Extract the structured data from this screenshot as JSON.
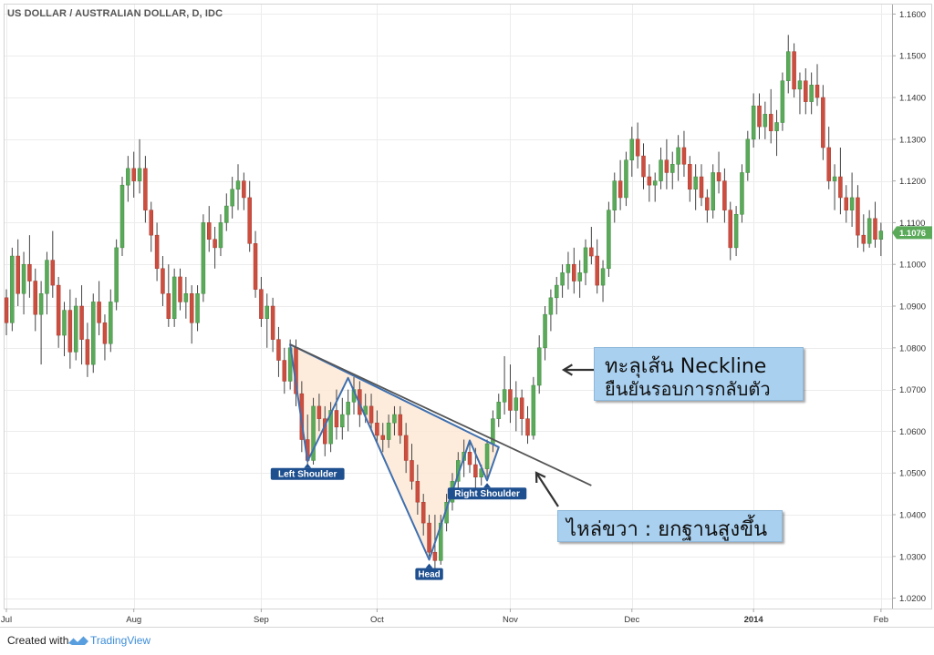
{
  "chart_data": {
    "type": "candlestick",
    "title": "US DOLLAR / AUSTRALIAN DOLLAR, D, IDC",
    "y_axis": {
      "position": "right",
      "range": [
        1.0175,
        1.1625
      ],
      "ticks": [
        "1.1600",
        "1.1500",
        "1.1400",
        "1.1300",
        "1.1200",
        "1.1100",
        "1.1000",
        "1.0900",
        "1.0800",
        "1.0700",
        "1.0600",
        "1.0500",
        "1.0400",
        "1.0300",
        "1.0200"
      ]
    },
    "x_axis": {
      "ticks": [
        {
          "label": "Jul",
          "bold": false,
          "candle": 0
        },
        {
          "label": "Aug",
          "bold": false,
          "candle": 22
        },
        {
          "label": "Sep",
          "bold": false,
          "candle": 44
        },
        {
          "label": "Oct",
          "bold": false,
          "candle": 64
        },
        {
          "label": "Nov",
          "bold": false,
          "candle": 87
        },
        {
          "label": "Dec",
          "bold": false,
          "candle": 108
        },
        {
          "label": "2014",
          "bold": true,
          "candle": 129
        },
        {
          "label": "Feb",
          "bold": false,
          "candle": 151
        }
      ]
    },
    "last_price": {
      "label": "1.1076",
      "value": 1.1076,
      "color": "#5aaa5a"
    },
    "colors": {
      "up": "#5aaa5a",
      "down": "#cd4e3f",
      "wick": "#444444"
    },
    "candles": [
      [
        1.092,
        1.094,
        1.083,
        1.086
      ],
      [
        1.086,
        1.104,
        1.084,
        1.102
      ],
      [
        1.102,
        1.106,
        1.09,
        1.093
      ],
      [
        1.093,
        1.103,
        1.088,
        1.1
      ],
      [
        1.1,
        1.107,
        1.092,
        1.096
      ],
      [
        1.096,
        1.099,
        1.084,
        1.088
      ],
      [
        1.088,
        1.096,
        1.076,
        1.093
      ],
      [
        1.093,
        1.103,
        1.088,
        1.101
      ],
      [
        1.101,
        1.108,
        1.092,
        1.095
      ],
      [
        1.095,
        1.097,
        1.08,
        1.083
      ],
      [
        1.083,
        1.091,
        1.078,
        1.089
      ],
      [
        1.089,
        1.094,
        1.075,
        1.079
      ],
      [
        1.079,
        1.092,
        1.077,
        1.09
      ],
      [
        1.09,
        1.095,
        1.076,
        1.082
      ],
      [
        1.082,
        1.086,
        1.073,
        1.076
      ],
      [
        1.076,
        1.093,
        1.074,
        1.091
      ],
      [
        1.091,
        1.096,
        1.083,
        1.086
      ],
      [
        1.086,
        1.088,
        1.077,
        1.081
      ],
      [
        1.081,
        1.094,
        1.079,
        1.091
      ],
      [
        1.091,
        1.106,
        1.089,
        1.104
      ],
      [
        1.104,
        1.121,
        1.102,
        1.119
      ],
      [
        1.119,
        1.126,
        1.115,
        1.123
      ],
      [
        1.123,
        1.127,
        1.116,
        1.12
      ],
      [
        1.12,
        1.13,
        1.117,
        1.123
      ],
      [
        1.123,
        1.126,
        1.11,
        1.113
      ],
      [
        1.113,
        1.115,
        1.103,
        1.107
      ],
      [
        1.107,
        1.11,
        1.096,
        1.099
      ],
      [
        1.099,
        1.102,
        1.09,
        1.093
      ],
      [
        1.093,
        1.1,
        1.085,
        1.087
      ],
      [
        1.087,
        1.099,
        1.085,
        1.097
      ],
      [
        1.097,
        1.099,
        1.089,
        1.091
      ],
      [
        1.091,
        1.097,
        1.087,
        1.093
      ],
      [
        1.093,
        1.095,
        1.081,
        1.086
      ],
      [
        1.086,
        1.095,
        1.084,
        1.093
      ],
      [
        1.093,
        1.112,
        1.091,
        1.11
      ],
      [
        1.11,
        1.114,
        1.103,
        1.106
      ],
      [
        1.106,
        1.109,
        1.099,
        1.104
      ],
      [
        1.104,
        1.112,
        1.102,
        1.11
      ],
      [
        1.11,
        1.117,
        1.108,
        1.114
      ],
      [
        1.114,
        1.121,
        1.111,
        1.118
      ],
      [
        1.118,
        1.124,
        1.113,
        1.12
      ],
      [
        1.12,
        1.122,
        1.113,
        1.116
      ],
      [
        1.116,
        1.12,
        1.103,
        1.105
      ],
      [
        1.105,
        1.108,
        1.092,
        1.094
      ],
      [
        1.094,
        1.097,
        1.085,
        1.087
      ],
      [
        1.087,
        1.093,
        1.08,
        1.09
      ],
      [
        1.09,
        1.092,
        1.079,
        1.082
      ],
      [
        1.082,
        1.085,
        1.073,
        1.077
      ],
      [
        1.077,
        1.08,
        1.069,
        1.072
      ],
      [
        1.072,
        1.082,
        1.07,
        1.08
      ],
      [
        1.08,
        1.082,
        1.066,
        1.069
      ],
      [
        1.069,
        1.072,
        1.055,
        1.058
      ],
      [
        1.058,
        1.064,
        1.052,
        1.053
      ],
      [
        1.053,
        1.068,
        1.052,
        1.066
      ],
      [
        1.066,
        1.069,
        1.06,
        1.063
      ],
      [
        1.063,
        1.066,
        1.054,
        1.057
      ],
      [
        1.057,
        1.067,
        1.055,
        1.065
      ],
      [
        1.065,
        1.07,
        1.058,
        1.061
      ],
      [
        1.061,
        1.068,
        1.058,
        1.064
      ],
      [
        1.064,
        1.07,
        1.06,
        1.067
      ],
      [
        1.067,
        1.073,
        1.064,
        1.07
      ],
      [
        1.07,
        1.072,
        1.061,
        1.064
      ],
      [
        1.064,
        1.069,
        1.062,
        1.066
      ],
      [
        1.066,
        1.069,
        1.06,
        1.062
      ],
      [
        1.062,
        1.065,
        1.057,
        1.059
      ],
      [
        1.059,
        1.062,
        1.055,
        1.058
      ],
      [
        1.058,
        1.064,
        1.056,
        1.062
      ],
      [
        1.062,
        1.066,
        1.059,
        1.064
      ],
      [
        1.064,
        1.066,
        1.057,
        1.059
      ],
      [
        1.059,
        1.062,
        1.05,
        1.053
      ],
      [
        1.053,
        1.057,
        1.046,
        1.048
      ],
      [
        1.048,
        1.052,
        1.04,
        1.043
      ],
      [
        1.043,
        1.045,
        1.035,
        1.038
      ],
      [
        1.038,
        1.04,
        1.03,
        1.031
      ],
      [
        1.031,
        1.04,
        1.025,
        1.029
      ],
      [
        1.029,
        1.04,
        1.028,
        1.038
      ],
      [
        1.038,
        1.045,
        1.036,
        1.043
      ],
      [
        1.043,
        1.05,
        1.041,
        1.048
      ],
      [
        1.048,
        1.055,
        1.045,
        1.053
      ],
      [
        1.053,
        1.058,
        1.049,
        1.055
      ],
      [
        1.055,
        1.058,
        1.05,
        1.052
      ],
      [
        1.052,
        1.056,
        1.046,
        1.049
      ],
      [
        1.049,
        1.052,
        1.047,
        1.051
      ],
      [
        1.051,
        1.058,
        1.049,
        1.057
      ],
      [
        1.057,
        1.065,
        1.055,
        1.063
      ],
      [
        1.063,
        1.069,
        1.061,
        1.067
      ],
      [
        1.067,
        1.078,
        1.064,
        1.07
      ],
      [
        1.07,
        1.076,
        1.062,
        1.065
      ],
      [
        1.065,
        1.072,
        1.06,
        1.068
      ],
      [
        1.068,
        1.07,
        1.059,
        1.063
      ],
      [
        1.063,
        1.066,
        1.057,
        1.059
      ],
      [
        1.059,
        1.073,
        1.058,
        1.071
      ],
      [
        1.071,
        1.083,
        1.069,
        1.08
      ],
      [
        1.08,
        1.09,
        1.077,
        1.088
      ],
      [
        1.088,
        1.094,
        1.084,
        1.092
      ],
      [
        1.092,
        1.097,
        1.088,
        1.095
      ],
      [
        1.095,
        1.1,
        1.092,
        1.098
      ],
      [
        1.098,
        1.103,
        1.094,
        1.1
      ],
      [
        1.1,
        1.104,
        1.093,
        1.096
      ],
      [
        1.096,
        1.101,
        1.092,
        1.098
      ],
      [
        1.098,
        1.106,
        1.095,
        1.104
      ],
      [
        1.104,
        1.109,
        1.1,
        1.102
      ],
      [
        1.102,
        1.106,
        1.093,
        1.095
      ],
      [
        1.095,
        1.101,
        1.091,
        1.099
      ],
      [
        1.099,
        1.115,
        1.097,
        1.113
      ],
      [
        1.113,
        1.122,
        1.11,
        1.12
      ],
      [
        1.12,
        1.125,
        1.113,
        1.116
      ],
      [
        1.116,
        1.127,
        1.114,
        1.125
      ],
      [
        1.125,
        1.133,
        1.121,
        1.13
      ],
      [
        1.13,
        1.134,
        1.123,
        1.126
      ],
      [
        1.126,
        1.129,
        1.118,
        1.121
      ],
      [
        1.121,
        1.124,
        1.115,
        1.119
      ],
      [
        1.119,
        1.122,
        1.115,
        1.12
      ],
      [
        1.12,
        1.128,
        1.118,
        1.125
      ],
      [
        1.125,
        1.13,
        1.118,
        1.122
      ],
      [
        1.122,
        1.127,
        1.118,
        1.124
      ],
      [
        1.124,
        1.131,
        1.12,
        1.128
      ],
      [
        1.128,
        1.132,
        1.121,
        1.124
      ],
      [
        1.124,
        1.126,
        1.115,
        1.118
      ],
      [
        1.118,
        1.124,
        1.113,
        1.121
      ],
      [
        1.121,
        1.124,
        1.114,
        1.116
      ],
      [
        1.116,
        1.118,
        1.11,
        1.113
      ],
      [
        1.113,
        1.124,
        1.111,
        1.122
      ],
      [
        1.122,
        1.127,
        1.117,
        1.12
      ],
      [
        1.12,
        1.123,
        1.11,
        1.113
      ],
      [
        1.113,
        1.115,
        1.101,
        1.104
      ],
      [
        1.104,
        1.114,
        1.102,
        1.112
      ],
      [
        1.112,
        1.124,
        1.11,
        1.122
      ],
      [
        1.122,
        1.132,
        1.12,
        1.13
      ],
      [
        1.13,
        1.141,
        1.128,
        1.138
      ],
      [
        1.138,
        1.141,
        1.13,
        1.133
      ],
      [
        1.133,
        1.139,
        1.13,
        1.136
      ],
      [
        1.136,
        1.142,
        1.129,
        1.132
      ],
      [
        1.132,
        1.137,
        1.126,
        1.134
      ],
      [
        1.134,
        1.146,
        1.132,
        1.144
      ],
      [
        1.144,
        1.155,
        1.141,
        1.151
      ],
      [
        1.151,
        1.153,
        1.14,
        1.142
      ],
      [
        1.142,
        1.146,
        1.136,
        1.144
      ],
      [
        1.144,
        1.147,
        1.136,
        1.139
      ],
      [
        1.139,
        1.146,
        1.136,
        1.143
      ],
      [
        1.143,
        1.148,
        1.138,
        1.14
      ],
      [
        1.14,
        1.143,
        1.125,
        1.128
      ],
      [
        1.128,
        1.133,
        1.118,
        1.12
      ],
      [
        1.12,
        1.124,
        1.113,
        1.121
      ],
      [
        1.121,
        1.128,
        1.112,
        1.116
      ],
      [
        1.116,
        1.119,
        1.11,
        1.113
      ],
      [
        1.113,
        1.122,
        1.109,
        1.116
      ],
      [
        1.116,
        1.119,
        1.104,
        1.107
      ],
      [
        1.107,
        1.112,
        1.103,
        1.105
      ],
      [
        1.105,
        1.113,
        1.104,
        1.111
      ],
      [
        1.111,
        1.115,
        1.104,
        1.106
      ],
      [
        1.106,
        1.11,
        1.102,
        1.108
      ]
    ],
    "neckline": {
      "from": {
        "candle": 49,
        "price": 1.0808
      },
      "to": {
        "candle": 101,
        "price": 1.047
      },
      "color": "#555555"
    },
    "pattern_polygon": {
      "points": [
        {
          "candle": 49,
          "price": 1.0808
        },
        {
          "candle": 52,
          "price": 1.0528
        },
        {
          "candle": 59,
          "price": 1.0728
        },
        {
          "candle": 73,
          "price": 1.0292
        },
        {
          "candle": 80,
          "price": 1.0578
        },
        {
          "candle": 83,
          "price": 1.0482
        },
        {
          "candle": 85,
          "price": 1.0562
        }
      ],
      "fill": "#fde9d6",
      "stroke": "#3f6fae"
    },
    "labels": [
      {
        "text": "Left Shoulder",
        "candle": 52,
        "price": 1.0525
      },
      {
        "text": "Head",
        "candle": 73,
        "price": 1.0285
      },
      {
        "text": "Right Shoulder",
        "candle": 83,
        "price": 1.0478
      }
    ]
  },
  "annotations": {
    "neckline_break": {
      "line1": "ทะลุเส้น Neckline",
      "line2": "ยืนยันรอบการกลับตัว"
    },
    "right_shoulder_note": {
      "line1": "ไหล่ขวา : ยกฐานสูงขึ้น"
    }
  },
  "footer": {
    "created_with": "Created with",
    "brand": "TradingView",
    "brand_color": "#3c8dd8"
  }
}
